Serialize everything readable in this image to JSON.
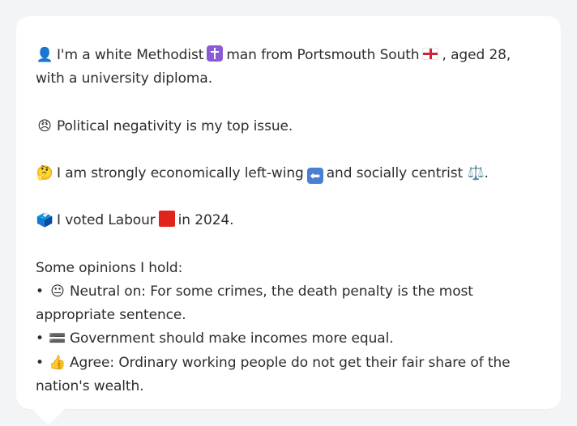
{
  "profile": {
    "line1": {
      "icon": "👤",
      "text_before_cross": "I'm a white Methodist",
      "text_before_flag": "man from Portsmouth South",
      "text_after_flag": ", aged 28, with a university diploma."
    },
    "line2": {
      "icon": "😠",
      "text": "Political negativity is my top issue."
    },
    "line3": {
      "icon": "🤔",
      "text_before_arrow": "I am strongly economically left-wing",
      "text_middle": "and socially centrist",
      "text_end": "⚖️."
    },
    "line4": {
      "icon": "🗳️",
      "text_before": "I voted Labour",
      "text_after": "in 2024."
    },
    "opinions": {
      "heading": "Some opinions I hold:",
      "items": [
        {
          "bullet": "•",
          "icon": "😐",
          "text": "Neutral on: For some crimes, the death penalty is the most appropriate sentence."
        },
        {
          "bullet": "•",
          "icon": "🟰",
          "text": "Government should make incomes more equal."
        },
        {
          "bullet": "•",
          "icon": "👍",
          "text": "Agree: Ordinary working people do not get their fair share of the nation's wealth."
        }
      ]
    }
  },
  "colors": {
    "background": "#f3f4f6",
    "card": "#ffffff",
    "text": "#2d2d2d",
    "cross": "#8b5bd6",
    "arrow": "#4b7fd1",
    "labour_red": "#e0251b"
  },
  "icons": {
    "person": "person-icon",
    "cross": "latin-cross-icon",
    "flag": "england-flag-icon",
    "angry": "angry-face-icon",
    "thinking": "thinking-face-icon",
    "left_arrow": "left-arrow-icon",
    "scales": "balance-scale-icon",
    "ballot": "ballot-box-icon",
    "red_square": "red-square-icon"
  }
}
